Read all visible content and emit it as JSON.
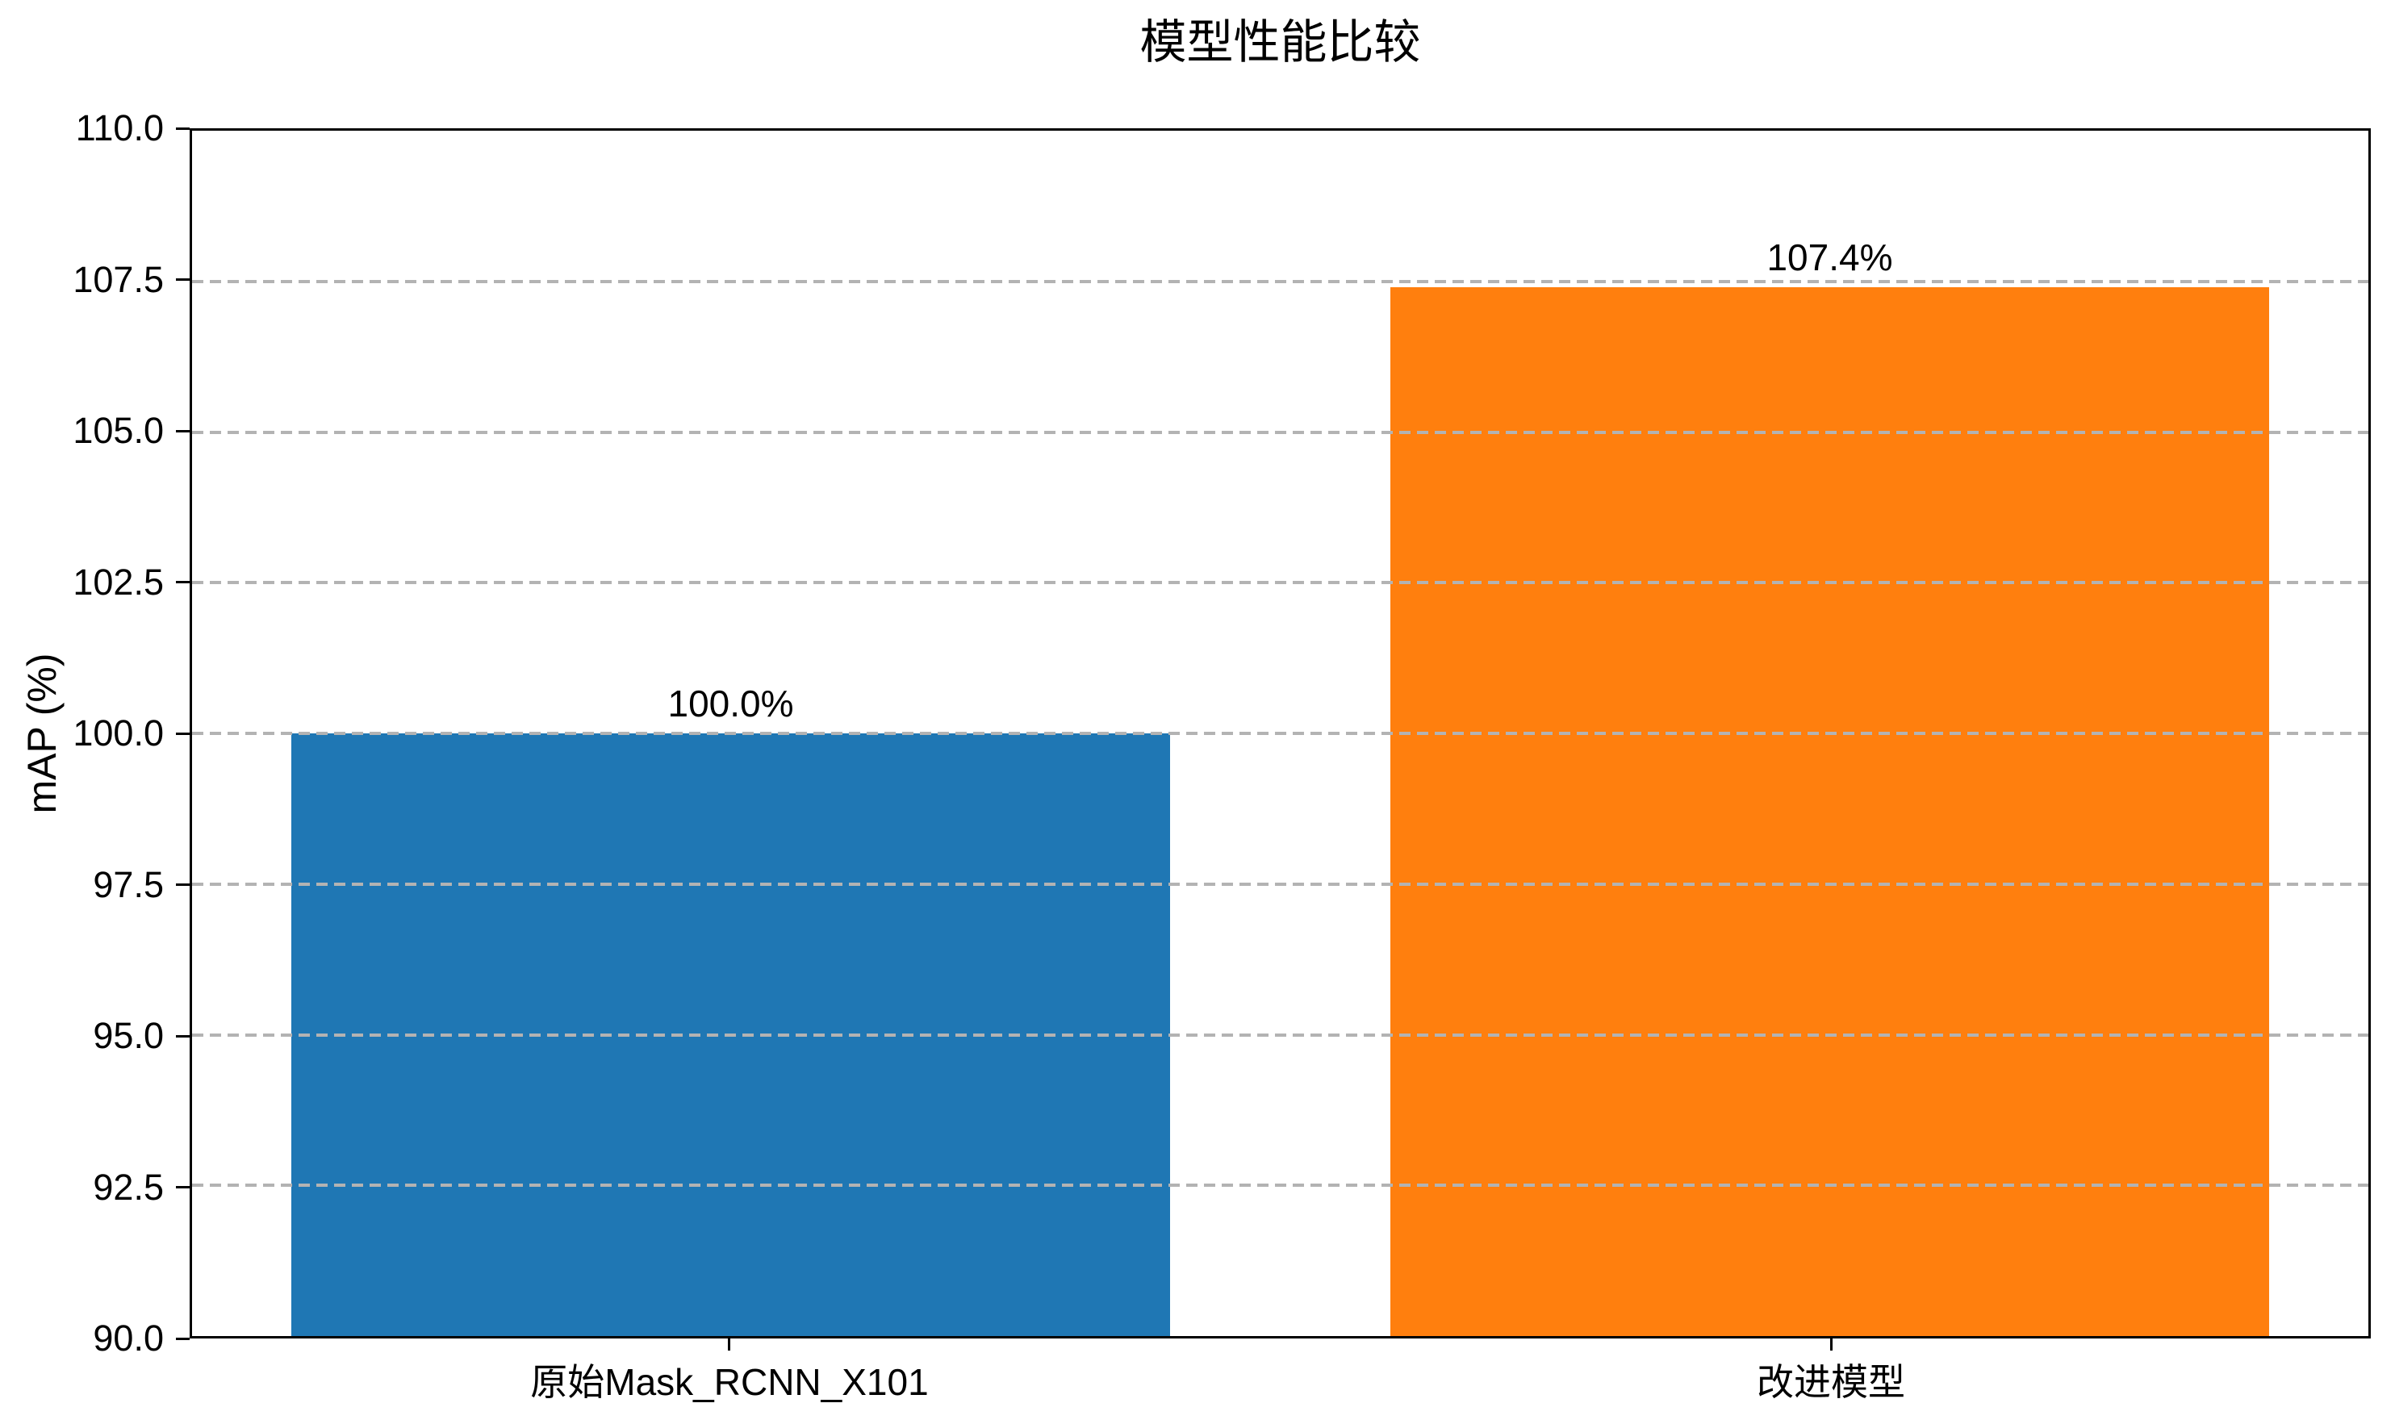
{
  "chart_data": {
    "type": "bar",
    "title": "模型性能比较",
    "ylabel": "mAP (%)",
    "xlabel": "",
    "categories": [
      "原始Mask_RCNN_X101",
      "改进模型"
    ],
    "values": [
      100.0,
      107.4
    ],
    "bar_labels": [
      "100.0%",
      "107.4%"
    ],
    "bar_colors": [
      "#1f77b4",
      "#ff7f0e"
    ],
    "ylim": [
      90.0,
      110.0
    ],
    "ytick_labels": [
      "90.0",
      "92.5",
      "95.0",
      "97.5",
      "100.0",
      "102.5",
      "105.0",
      "107.5",
      "110.0"
    ],
    "grid": {
      "axis": "y",
      "style": "dashed",
      "color": "#b3b3b3",
      "above_bars": true
    },
    "legend": "none",
    "background": "#ffffff",
    "axis_color": "#000000"
  }
}
